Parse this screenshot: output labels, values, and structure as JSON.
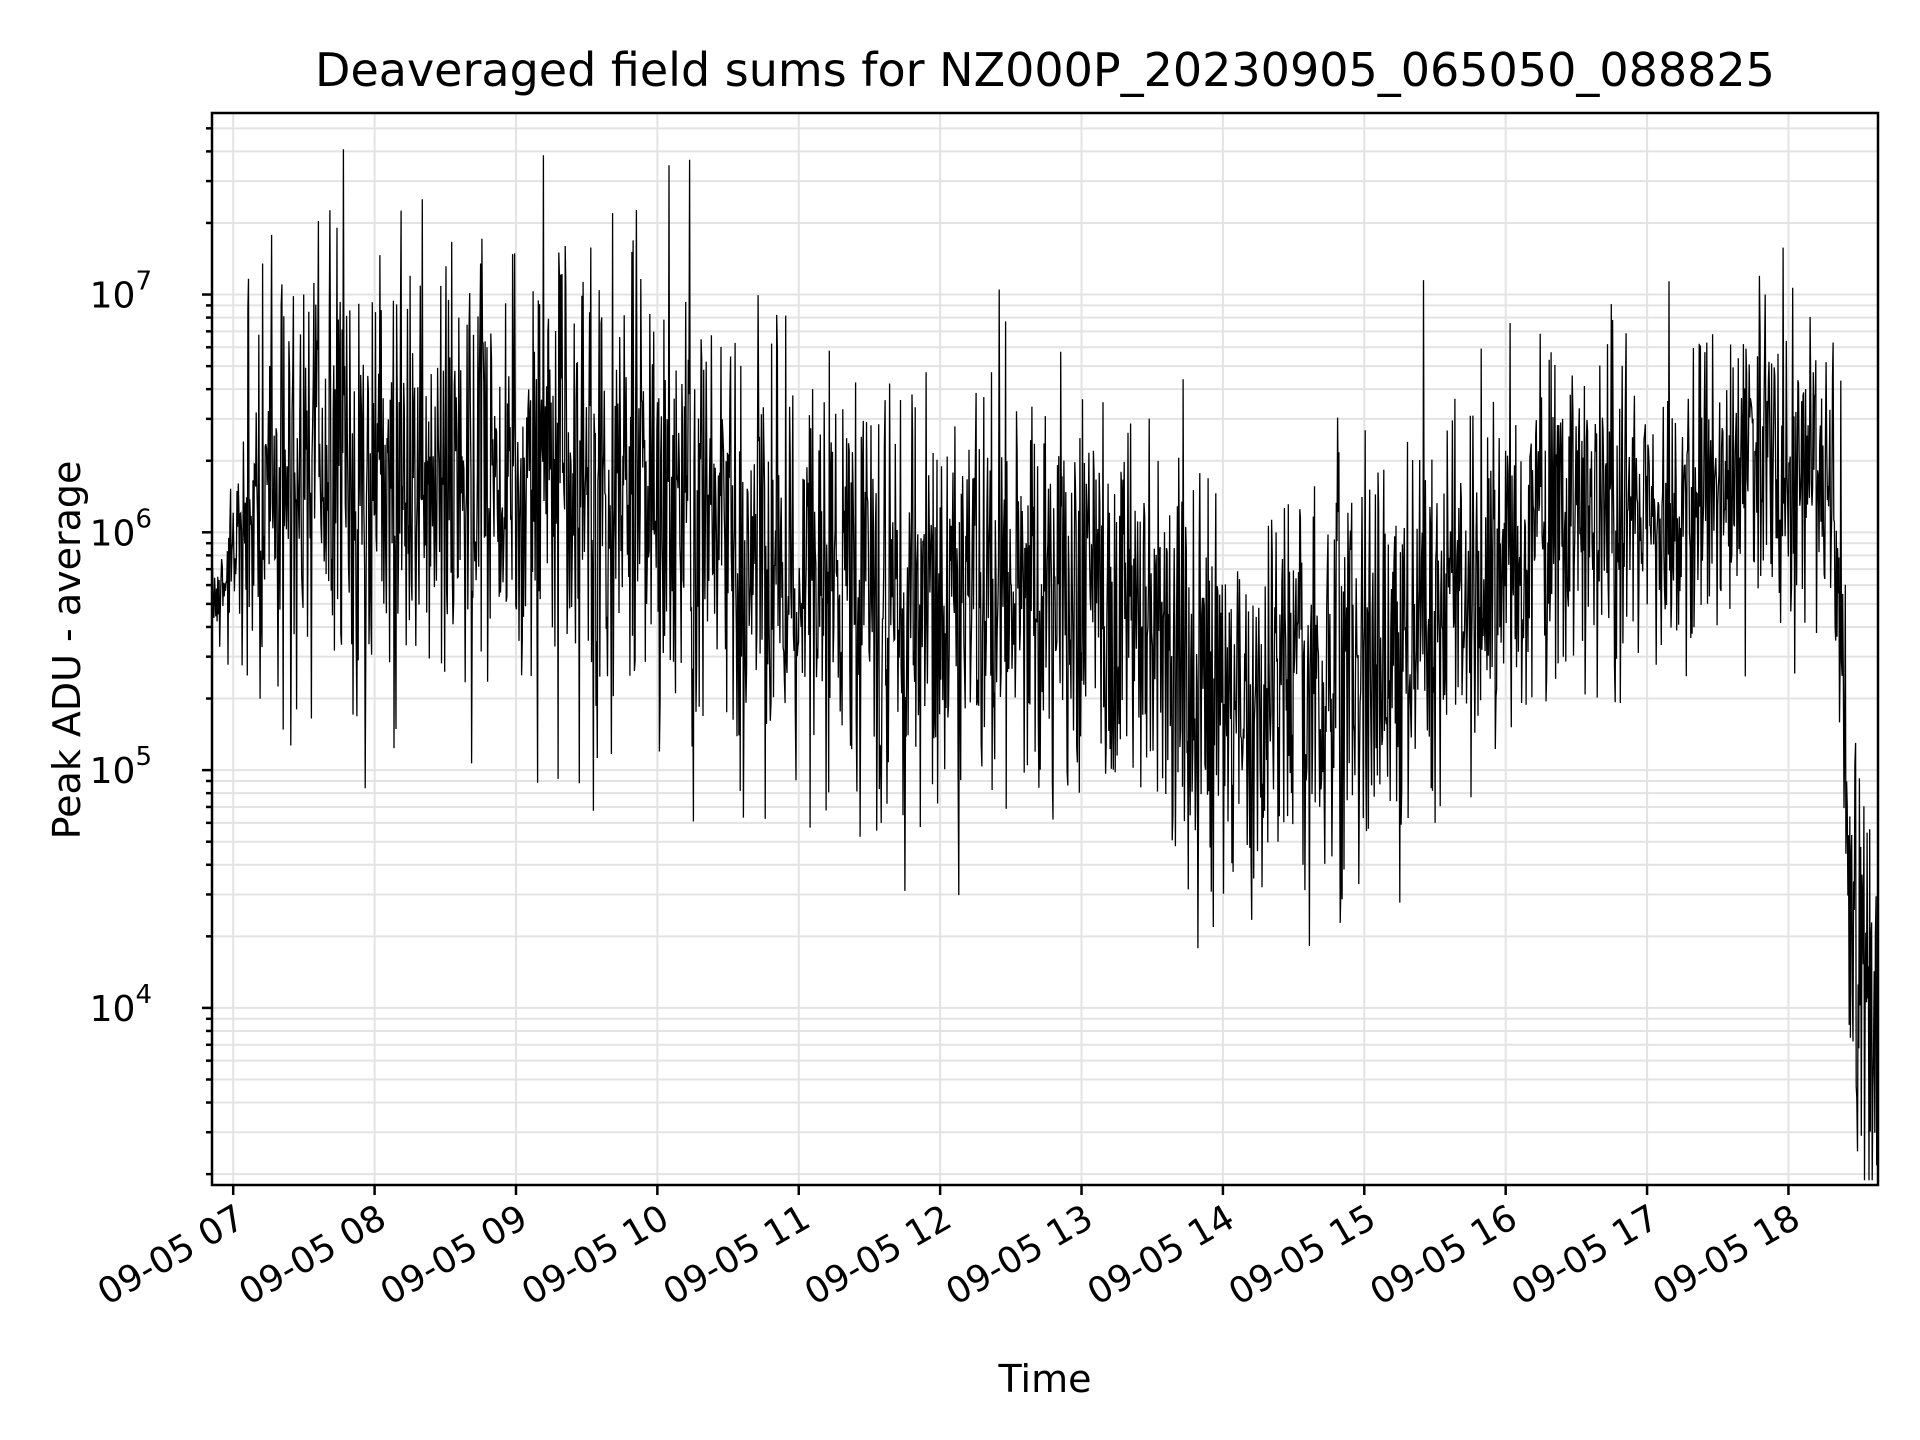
{
  "chart_data": {
    "type": "line",
    "title": "Deaveraged field sums for NZ000P_20230905_065050_088825",
    "xlabel": "Time",
    "ylabel": "Peak ADU - average",
    "yscale": "log",
    "ylim": [
      1800,
      58000000
    ],
    "xlim": [
      "2023-09-05T06:51:00",
      "2023-09-05T18:38:00"
    ],
    "x_ticks": [
      {
        "t": "2023-09-05T07:00:00",
        "label": "09-05 07"
      },
      {
        "t": "2023-09-05T08:00:00",
        "label": "09-05 08"
      },
      {
        "t": "2023-09-05T09:00:00",
        "label": "09-05 09"
      },
      {
        "t": "2023-09-05T10:00:00",
        "label": "09-05 10"
      },
      {
        "t": "2023-09-05T11:00:00",
        "label": "09-05 11"
      },
      {
        "t": "2023-09-05T12:00:00",
        "label": "09-05 12"
      },
      {
        "t": "2023-09-05T13:00:00",
        "label": "09-05 13"
      },
      {
        "t": "2023-09-05T14:00:00",
        "label": "09-05 14"
      },
      {
        "t": "2023-09-05T15:00:00",
        "label": "09-05 15"
      },
      {
        "t": "2023-09-05T16:00:00",
        "label": "09-05 16"
      },
      {
        "t": "2023-09-05T17:00:00",
        "label": "09-05 17"
      },
      {
        "t": "2023-09-05T18:00:00",
        "label": "09-05 18"
      }
    ],
    "y_ticks": [
      {
        "value": 10000,
        "base": "10",
        "exp": "4"
      },
      {
        "value": 100000,
        "base": "10",
        "exp": "5"
      },
      {
        "value": 1000000,
        "base": "10",
        "exp": "6"
      },
      {
        "value": 10000000,
        "base": "10",
        "exp": "7"
      }
    ],
    "grid": true,
    "line_color": "#000000",
    "grid_color": "#e3e3e3",
    "series": [
      {
        "values": [
          [
            "2023-09-05T06:51:00",
            500000
          ],
          [
            "2023-09-05T07:00:00",
            700000
          ],
          [
            "2023-09-05T07:10:00",
            1400000
          ],
          [
            "2023-09-05T07:20:00",
            2000000
          ],
          [
            "2023-09-05T07:30:00",
            1900000
          ],
          [
            "2023-09-05T07:45:00",
            1800000
          ],
          [
            "2023-09-05T08:00:00",
            1700000
          ],
          [
            "2023-09-05T08:15:00",
            1900000
          ],
          [
            "2023-09-05T08:30:00",
            1900000
          ],
          [
            "2023-09-05T08:45:00",
            1700000
          ],
          [
            "2023-09-05T09:00:00",
            1600000
          ],
          [
            "2023-09-05T09:15:00",
            1600000
          ],
          [
            "2023-09-05T09:30:00",
            1400000
          ],
          [
            "2023-09-05T09:45:00",
            1300000
          ],
          [
            "2023-09-05T10:00:00",
            1400000
          ],
          [
            "2023-09-05T10:15:00",
            1200000
          ],
          [
            "2023-09-05T10:30:00",
            900000
          ],
          [
            "2023-09-05T10:45:00",
            800000
          ],
          [
            "2023-09-05T11:00:00",
            700000
          ],
          [
            "2023-09-05T11:15:00",
            650000
          ],
          [
            "2023-09-05T11:30:00",
            550000
          ],
          [
            "2023-09-05T11:45:00",
            550000
          ],
          [
            "2023-09-05T12:00:00",
            550000
          ],
          [
            "2023-09-05T12:15:00",
            550000
          ],
          [
            "2023-09-05T12:30:00",
            600000
          ],
          [
            "2023-09-05T12:45:00",
            550000
          ],
          [
            "2023-09-05T13:00:00",
            550000
          ],
          [
            "2023-09-05T13:15:00",
            500000
          ],
          [
            "2023-09-05T13:30:00",
            400000
          ],
          [
            "2023-09-05T13:45:00",
            250000
          ],
          [
            "2023-09-05T14:00:00",
            200000
          ],
          [
            "2023-09-05T14:15:00",
            180000
          ],
          [
            "2023-09-05T14:30:00",
            200000
          ],
          [
            "2023-09-05T14:45:00",
            250000
          ],
          [
            "2023-09-05T15:00:00",
            320000
          ],
          [
            "2023-09-05T15:15:00",
            380000
          ],
          [
            "2023-09-05T15:30:00",
            450000
          ],
          [
            "2023-09-05T15:45:00",
            550000
          ],
          [
            "2023-09-05T16:00:00",
            800000
          ],
          [
            "2023-09-05T16:15:00",
            950000
          ],
          [
            "2023-09-05T16:30:00",
            1000000
          ],
          [
            "2023-09-05T16:45:00",
            1100000
          ],
          [
            "2023-09-05T17:00:00",
            1200000
          ],
          [
            "2023-09-05T17:15:00",
            1300000
          ],
          [
            "2023-09-05T17:30:00",
            1600000
          ],
          [
            "2023-09-05T17:45:00",
            2100000
          ],
          [
            "2023-09-05T18:00:00",
            1900000
          ],
          [
            "2023-09-05T18:10:00",
            1800000
          ],
          [
            "2023-09-05T18:17:00",
            1500000
          ],
          [
            "2023-09-05T18:21:00",
            700000
          ],
          [
            "2023-09-05T18:23:00",
            200000
          ],
          [
            "2023-09-05T18:26:00",
            40000
          ],
          [
            "2023-09-05T18:30:00",
            15000
          ],
          [
            "2023-09-05T18:34:00",
            12000
          ],
          [
            "2023-09-05T18:38:00",
            12000
          ]
        ],
        "spread_dex": [
          [
            "2023-09-05T06:51:00",
            0.12
          ],
          [
            "2023-09-05T07:00:00",
            0.18
          ],
          [
            "2023-09-05T07:10:00",
            0.45
          ],
          [
            "2023-09-05T07:30:00",
            0.5
          ],
          [
            "2023-09-05T09:30:00",
            0.52
          ],
          [
            "2023-09-05T10:30:00",
            0.5
          ],
          [
            "2023-09-05T13:00:00",
            0.42
          ],
          [
            "2023-09-05T14:30:00",
            0.45
          ],
          [
            "2023-09-05T16:00:00",
            0.38
          ],
          [
            "2023-09-05T18:15:00",
            0.32
          ],
          [
            "2023-09-05T18:23:00",
            0.5
          ],
          [
            "2023-09-05T18:38:00",
            0.5
          ]
        ],
        "spikes": [
          [
            "2023-09-05T10:05:00",
            35000000
          ],
          [
            "2023-09-05T09:41:00",
            22000000
          ],
          [
            "2023-09-05T08:45:00",
            13500000
          ],
          [
            "2023-09-05T09:21:00",
            16000000
          ],
          [
            "2023-09-05T15:25:00",
            11500000
          ],
          [
            "2023-09-05T12:25:00",
            10500000
          ],
          [
            "2023-09-05T17:50:00",
            10000000
          ],
          [
            "2023-09-05T07:30:00",
            10000000
          ],
          [
            "2023-09-05T08:15:00",
            12000000
          ],
          [
            "2023-09-05T07:27:00",
            180000
          ],
          [
            "2023-09-05T09:27:00",
            88000
          ],
          [
            "2023-09-05T11:35:00",
            60000
          ],
          [
            "2023-09-05T12:48:00",
            62000
          ],
          [
            "2023-09-05T14:13:00",
            35000
          ],
          [
            "2023-09-05T14:34:00",
            40000
          ],
          [
            "2023-09-05T15:30:00",
            60000
          ],
          [
            "2023-09-05T18:31:00",
            2900
          ],
          [
            "2023-09-05T18:29:00",
            4200
          ],
          [
            "2023-09-05T18:36:00",
            6500
          ]
        ]
      }
    ]
  }
}
